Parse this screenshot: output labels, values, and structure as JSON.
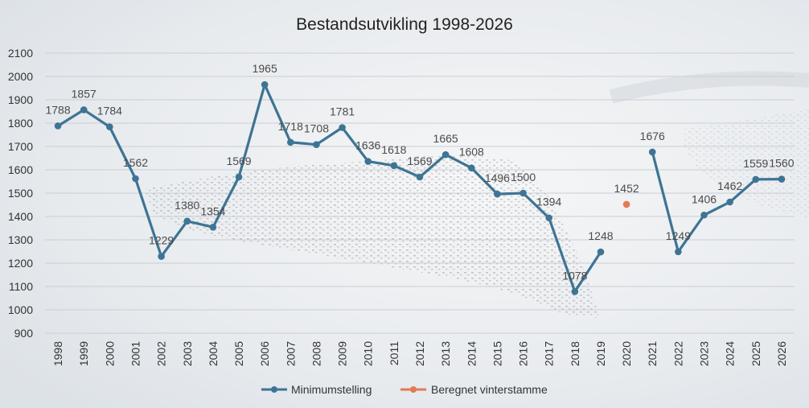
{
  "chart_data": {
    "type": "line",
    "title": "Bestandsutvikling 1998-2026",
    "xlabel": "",
    "ylabel": "",
    "ylim": [
      900,
      2100
    ],
    "yticks": [
      900,
      1000,
      1100,
      1200,
      1300,
      1400,
      1500,
      1600,
      1700,
      1800,
      1900,
      2000,
      2100
    ],
    "categories": [
      "1998",
      "1999",
      "2000",
      "2001",
      "2002",
      "2003",
      "2004",
      "2005",
      "2006",
      "2007",
      "2008",
      "2009",
      "2010",
      "2011",
      "2012",
      "2013",
      "2014",
      "2015",
      "2016",
      "2017",
      "2018",
      "2019",
      "2020",
      "2021",
      "2022",
      "2023",
      "2024",
      "2025",
      "2026"
    ],
    "grid": true,
    "legend_position": "bottom",
    "series": [
      {
        "name": "Minimumstelling",
        "color": "#3e7494",
        "values": [
          1788,
          1857,
          1784,
          1562,
          1229,
          1380,
          1354,
          1569,
          1965,
          1718,
          1708,
          1781,
          1636,
          1618,
          1569,
          1665,
          1608,
          1496,
          1500,
          1394,
          1078,
          1248,
          null,
          1676,
          1249,
          1406,
          1462,
          1559,
          1560
        ]
      },
      {
        "name": "Beregnet vinterstamme",
        "color": "#e07b54",
        "values": [
          null,
          null,
          null,
          null,
          null,
          null,
          null,
          null,
          null,
          null,
          null,
          null,
          null,
          null,
          null,
          null,
          null,
          null,
          null,
          null,
          null,
          null,
          1452,
          null,
          null,
          null,
          null,
          null,
          null
        ]
      }
    ]
  }
}
